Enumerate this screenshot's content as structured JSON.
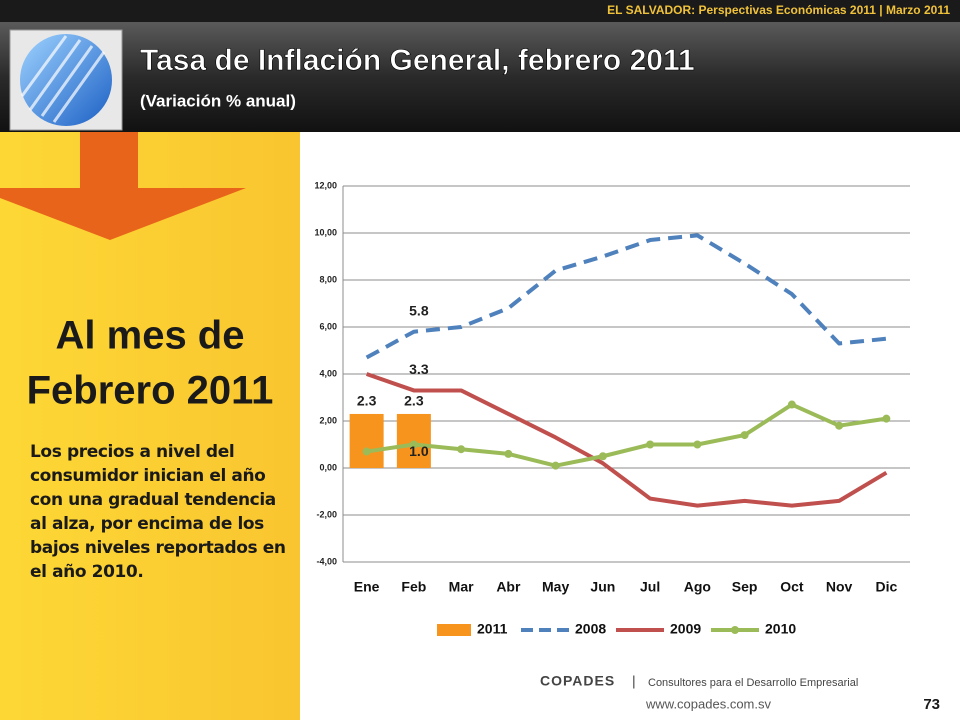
{
  "header": {
    "topline": "EL SALVADOR: Perspectivas Económicas 2011 | Marzo 2011",
    "title": "Tasa de Inflación General, febrero 2011",
    "subtitle": "(Variación % anual)"
  },
  "sidebar": {
    "headline_1": "Al mes de",
    "headline_2": "Febrero 2011",
    "text": "Los precios a nivel del consumidor inician el año con una gradual tendencia al alza, por encima de los bajos niveles reportados en el año 2010."
  },
  "footer": {
    "brand": "COPADES",
    "separator": "|",
    "tagline": "Consultores para el Desarrollo Empresarial",
    "url": "www.copades.com.sv",
    "page": "73"
  },
  "chart_data": {
    "type": "line",
    "categories": [
      "Ene",
      "Feb",
      "Mar",
      "Abr",
      "May",
      "Jun",
      "Jul",
      "Ago",
      "Sep",
      "Oct",
      "Nov",
      "Dic"
    ],
    "series": [
      {
        "name": "2011",
        "type": "bar",
        "color": "#f7941d",
        "values": [
          2.3,
          2.3,
          null,
          null,
          null,
          null,
          null,
          null,
          null,
          null,
          null,
          null
        ],
        "value_labels": [
          "2.3",
          "2.3",
          null,
          null,
          null,
          null,
          null,
          null,
          null,
          null,
          null,
          null
        ]
      },
      {
        "name": "2008",
        "type": "line",
        "dash": true,
        "color": "#4f81bd",
        "values": [
          4.7,
          5.8,
          6.0,
          6.8,
          8.4,
          9.0,
          9.7,
          9.9,
          8.7,
          7.4,
          5.3,
          5.5
        ],
        "value_labels": [
          null,
          "5.8",
          null,
          null,
          null,
          null,
          null,
          null,
          null,
          null,
          null,
          null
        ]
      },
      {
        "name": "2009",
        "type": "line",
        "color": "#c0504d",
        "values": [
          4.0,
          3.3,
          3.3,
          2.3,
          1.3,
          0.2,
          -1.3,
          -1.6,
          -1.4,
          -1.6,
          -1.4,
          -0.2
        ],
        "value_labels": [
          null,
          "3.3",
          null,
          null,
          null,
          null,
          null,
          null,
          null,
          null,
          null,
          null
        ]
      },
      {
        "name": "2010",
        "type": "line",
        "markers": true,
        "color": "#9bbb59",
        "values": [
          0.7,
          1.0,
          0.8,
          0.6,
          0.1,
          0.5,
          1.0,
          1.0,
          1.4,
          2.7,
          1.8,
          2.1
        ],
        "value_labels": [
          null,
          "1.0",
          null,
          null,
          null,
          null,
          null,
          null,
          null,
          null,
          null,
          null
        ]
      }
    ],
    "ylim": [
      -4,
      12
    ],
    "yticks": [
      {
        "value": -4,
        "label": "-4,00"
      },
      {
        "value": -2,
        "label": "-2,00"
      },
      {
        "value": 0,
        "label": "0,00"
      },
      {
        "value": 2,
        "label": "2,00"
      },
      {
        "value": 4,
        "label": "4,00"
      },
      {
        "value": 6,
        "label": "6,00"
      },
      {
        "value": 8,
        "label": "8,00"
      },
      {
        "value": 10,
        "label": "10,00"
      },
      {
        "value": 12,
        "label": "12,00"
      }
    ],
    "grid": true,
    "legend": "bottom"
  }
}
